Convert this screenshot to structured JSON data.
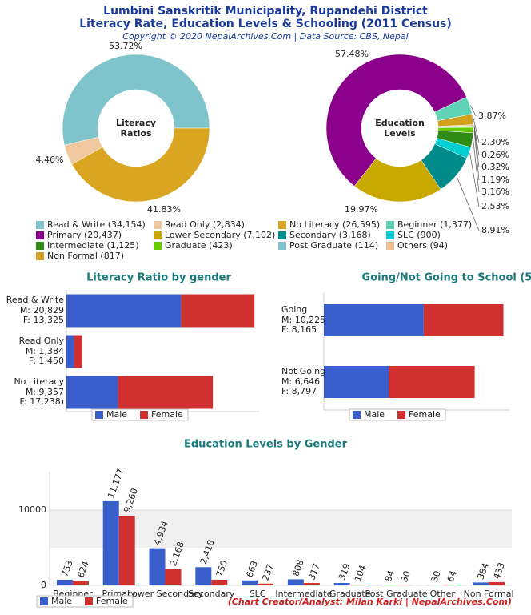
{
  "header": {
    "title": [
      "Lumbini Sanskritik Municipality, Rupandehi District",
      "Literacy Rate, Education Levels & Schooling (2011 Census)"
    ],
    "subtitle": "Copyright © 2020 NepalArchives.Com | Data Source: CBS, Nepal"
  },
  "chart_data": [
    {
      "type": "pie",
      "center_label": [
        "Literacy",
        "Ratios"
      ],
      "categories": [
        "Read & Write",
        "Read Only",
        "No Literacy"
      ],
      "values": [
        53.72,
        4.46,
        41.83
      ],
      "value_labels": [
        "53.72%",
        "4.46%",
        "41.83%"
      ],
      "legend_labels": [
        "Read & Write (34,154)",
        "Read Only (2,834)",
        "No Literacy (26,595)"
      ],
      "colors": [
        "#7fc4cc",
        "#f0c8a0",
        "#daa520"
      ]
    },
    {
      "type": "pie",
      "center_label": [
        "Education",
        "Levels"
      ],
      "categories": [
        "Beginner",
        "Primary",
        "Lower Secondary",
        "Secondary",
        "SLC",
        "Intermediate",
        "Graduate",
        "Post Graduate",
        "Others",
        "Non Formal"
      ],
      "values": [
        3.87,
        57.48,
        19.97,
        8.91,
        2.53,
        3.16,
        1.19,
        0.32,
        0.26,
        2.3
      ],
      "value_labels": [
        "3.87%",
        "57.48%",
        "19.97%",
        "8.91%",
        "2.53%",
        "3.16%",
        "1.19%",
        "0.32%",
        "0.26%",
        "2.30%"
      ],
      "legend_labels": [
        "Beginner (1,377)",
        "Primary (20,437)",
        "Lower Secondary (7,102)",
        "Secondary (3,168)",
        "SLC (900)",
        "Intermediate (1,125)",
        "Graduate (423)",
        "Post Graduate (114)",
        "Others (94)",
        "Non Formal (817)"
      ],
      "colors": [
        "#5fd3b3",
        "#8b008b",
        "#c9a900",
        "#008b8b",
        "#00ced1",
        "#2e8b14",
        "#66cc00",
        "#7fc4cc",
        "#f0c090",
        "#d4a020"
      ]
    },
    {
      "type": "hbar",
      "title": "Literacy Ratio by gender",
      "categories": [
        "Read & Write",
        "Read Only",
        "No Literacy"
      ],
      "series": [
        {
          "name": "Male",
          "color": "#3a5fcd",
          "values": [
            20829,
            1384,
            9357
          ],
          "value_labels": [
            "M: 20,829",
            "M: 1,384",
            "M: 9,357"
          ]
        },
        {
          "name": "Female",
          "color": "#d03030",
          "values": [
            13325,
            1450,
            17238
          ],
          "value_labels": [
            "F: 13,325",
            "F: 1,450",
            "F: 17,238)"
          ]
        }
      ],
      "xlim": [
        0,
        35000
      ]
    },
    {
      "type": "hbar",
      "title": "Going/Not Going to School (5-25 years)",
      "categories": [
        "Going",
        "Not Going"
      ],
      "series": [
        {
          "name": "Male",
          "color": "#3a5fcd",
          "values": [
            10225,
            6646
          ],
          "value_labels": [
            "M: 10,225",
            "M: 6,646"
          ]
        },
        {
          "name": "Female",
          "color": "#d03030",
          "values": [
            8165,
            8797
          ],
          "value_labels": [
            "F: 8,165",
            "F: 8,797"
          ]
        }
      ],
      "xlim": [
        0,
        19000
      ]
    },
    {
      "type": "bar",
      "title": "Education Levels by Gender",
      "categories": [
        "Beginner",
        "Primary",
        "Lower Secondary",
        "Secondary",
        "SLC",
        "Intermediate",
        "Graduate",
        "Post Graduate",
        "Other",
        "Non Formal"
      ],
      "series": [
        {
          "name": "Male",
          "color": "#3a5fcd",
          "values": [
            753,
            11177,
            4934,
            2418,
            663,
            808,
            319,
            84,
            30,
            384
          ],
          "value_labels": [
            "753",
            "11,177",
            "4,934",
            "2,418",
            "663",
            "808",
            "319",
            "84",
            "30",
            "384"
          ]
        },
        {
          "name": "Female",
          "color": "#d03030",
          "values": [
            624,
            9260,
            2168,
            750,
            237,
            317,
            104,
            30,
            64,
            433
          ],
          "value_labels": [
            "624",
            "9,260",
            "2,168",
            "750",
            "237",
            "317",
            "104",
            "30",
            "64",
            "433"
          ]
        }
      ],
      "ylim": [
        0,
        15000
      ],
      "yticks": [
        0,
        10000
      ]
    }
  ],
  "footer": {
    "credit": "(Chart Creator/Analyst: Milan Karki | NepalArchives.Com)"
  }
}
